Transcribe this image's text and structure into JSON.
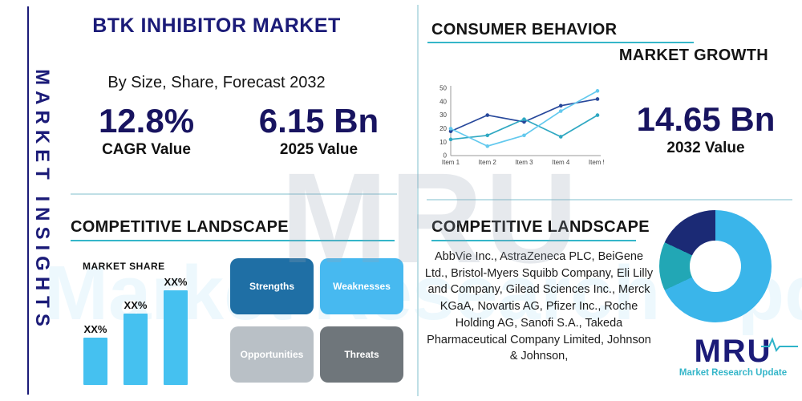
{
  "colors": {
    "navy": "#1b1b78",
    "stat_navy": "#181460",
    "teal_line": "#35b6c9",
    "divider": "#bfdfe6",
    "bar_blue": "#45c1f0"
  },
  "sidebar": {
    "label": "MARKET INSIGHTS"
  },
  "header": {
    "title": "BTK INHIBITOR MARKET",
    "subtitle": "By Size, Share, Forecast 2032"
  },
  "stats": {
    "cagr": {
      "value": "12.8%",
      "label": "CAGR Value"
    },
    "y2025": {
      "value": "6.15 Bn",
      "label": "2025 Value"
    },
    "y2032": {
      "value": "14.65 Bn",
      "label": "2032 Value"
    }
  },
  "sections": {
    "consumer_behavior": "CONSUMER BEHAVIOR",
    "market_growth": "MARKET GROWTH",
    "competitive_left": "COMPETITIVE LANDSCAPE",
    "competitive_right": "COMPETITIVE LANDSCAPE",
    "market_share": "MARKET SHARE"
  },
  "swot": [
    {
      "label": "Strengths",
      "color": "#1f6fa5"
    },
    {
      "label": "Weaknesses",
      "color": "#47b9f0"
    },
    {
      "label": "Opportunities",
      "color": "#b9c0c6"
    },
    {
      "label": "Threats",
      "color": "#6f767b"
    }
  ],
  "companies": "AbbVie Inc., AstraZeneca PLC, BeiGene Ltd., Bristol-Myers Squibb Company, Eli Lilly and Company, Gilead Sciences Inc., Merck KGaA, Novartis AG, Pfizer Inc., Roche Holding AG, Sanofi S.A., Takeda Pharmaceutical Company Limited, Johnson & Johnson,",
  "logo": {
    "name": "MRU",
    "tagline": "Market Research Update"
  },
  "watermark": {
    "center": "MRU",
    "wide": "Market Research Update"
  },
  "chart_data": [
    {
      "type": "line",
      "categories": [
        "Item 1",
        "Item 2",
        "Item 3",
        "Item 4",
        "Item 5"
      ],
      "series": [
        {
          "name": "series-navy",
          "color": "#27489b",
          "values": [
            18,
            30,
            25,
            37,
            42
          ]
        },
        {
          "name": "series-teal",
          "color": "#2fa8c2",
          "values": [
            12,
            15,
            27,
            14,
            30
          ]
        },
        {
          "name": "series-cyan",
          "color": "#63c9ee",
          "values": [
            20,
            7,
            15,
            33,
            48
          ]
        }
      ],
      "ylim": [
        0,
        50
      ],
      "yticks": [
        0,
        10,
        20,
        30,
        40,
        50
      ],
      "grid": false,
      "legend": "none"
    },
    {
      "type": "bar",
      "categories": [
        "XX%",
        "XX%",
        "XX%"
      ],
      "labels": [
        "XX%",
        "XX%",
        "XX%"
      ],
      "values": [
        30,
        45,
        60
      ],
      "color": "#45c1f0"
    },
    {
      "type": "pie",
      "donut": true,
      "slices": [
        {
          "name": "slice-light-blue",
          "value": 68,
          "color": "#3ab5ea"
        },
        {
          "name": "slice-teal",
          "value": 14,
          "color": "#22a7b5"
        },
        {
          "name": "slice-navy",
          "value": 18,
          "color": "#1b2a75"
        }
      ]
    }
  ]
}
